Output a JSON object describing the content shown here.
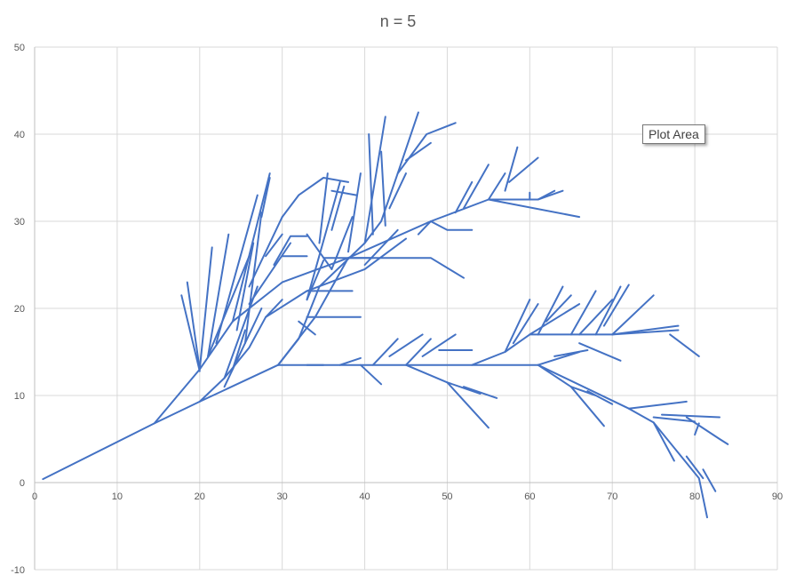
{
  "chart_data": {
    "type": "line",
    "title": "n = 5",
    "xlabel": "",
    "ylabel": "",
    "xlim": [
      0,
      90
    ],
    "ylim": [
      -10,
      50
    ],
    "x_ticks": [
      0,
      10,
      20,
      30,
      40,
      50,
      60,
      70,
      80,
      90
    ],
    "y_ticks": [
      -10,
      0,
      10,
      20,
      30,
      40,
      50
    ],
    "grid": true,
    "series_color": "#4472C4",
    "series": [
      {
        "points": [
          [
            1,
            0.4
          ],
          [
            14.5,
            6.8
          ],
          [
            20,
            9.3
          ],
          [
            29.5,
            13.5
          ],
          [
            61,
            13.5
          ],
          [
            72,
            8.5
          ],
          [
            75,
            6.9
          ],
          [
            80.5,
            0.5
          ],
          [
            81.5,
            -4.0
          ],
          null,
          [
            14.5,
            6.8
          ],
          [
            20,
            13.0
          ],
          [
            24,
            18.5
          ],
          [
            30,
            23.0
          ],
          [
            38,
            25.8
          ],
          [
            48,
            30.0
          ],
          [
            55,
            32.5
          ],
          [
            66,
            30.5
          ],
          null,
          [
            20,
            13.0
          ],
          [
            18.5,
            23.0
          ],
          null,
          [
            20,
            13.0
          ],
          [
            21.5,
            27.0
          ],
          null,
          [
            21,
            14.5
          ],
          [
            23.5,
            28.5
          ],
          null,
          [
            22,
            16.0
          ],
          [
            27,
            33.0
          ],
          null,
          [
            24,
            18.5
          ],
          [
            28.5,
            35.5
          ],
          null,
          [
            26,
            20.5
          ],
          [
            31,
            27.5
          ],
          null,
          [
            21,
            14.5
          ],
          [
            26,
            26.0
          ],
          null,
          [
            20,
            12.8
          ],
          [
            17.8,
            21.5
          ],
          null,
          [
            25.5,
            16.0
          ],
          [
            27.5,
            31.0
          ],
          null,
          [
            24.5,
            17.5
          ],
          [
            26.5,
            27.5
          ],
          null,
          [
            20,
            9.3
          ],
          [
            23,
            12.0
          ],
          [
            26,
            15.5
          ],
          [
            28,
            19.0
          ],
          [
            33,
            22.0
          ],
          [
            40,
            24.5
          ],
          [
            45,
            28.0
          ],
          null,
          [
            23,
            11.0
          ],
          [
            27.5,
            20.0
          ],
          null,
          [
            23,
            12.0
          ],
          [
            27,
            22.5
          ],
          null,
          [
            24,
            13.0
          ],
          [
            25.5,
            17.5
          ],
          null,
          [
            28,
            19.0
          ],
          [
            30,
            21.0
          ],
          null,
          [
            29.5,
            13.5
          ],
          [
            34,
            19.0
          ],
          [
            38,
            25.8
          ],
          [
            48,
            25.8
          ],
          [
            52,
            23.5
          ],
          null,
          [
            29.5,
            13.5
          ],
          [
            32,
            16.5
          ],
          [
            34.5,
            22.5
          ],
          [
            40,
            27.5
          ],
          [
            42,
            30.0
          ],
          [
            44,
            35.5
          ],
          [
            47.5,
            40.0
          ],
          [
            51,
            41.3
          ],
          null,
          [
            36,
            24.5
          ],
          [
            38.5,
            30.5
          ],
          null,
          [
            38,
            26.5
          ],
          [
            39.5,
            35.5
          ],
          null,
          [
            40,
            27.5
          ],
          [
            42.5,
            42.0
          ],
          null,
          [
            41,
            28.5
          ],
          [
            40.5,
            40.0
          ],
          null,
          [
            42.5,
            29.5
          ],
          [
            42,
            38.0
          ],
          null,
          [
            43,
            31.5
          ],
          [
            45,
            35.5
          ],
          null,
          [
            44,
            35.5
          ],
          [
            46.5,
            42.5
          ],
          null,
          [
            45,
            37.0
          ],
          [
            48,
            39.0
          ],
          null,
          [
            40,
            25.0
          ],
          [
            44,
            29.0
          ],
          null,
          [
            36,
            24.5
          ],
          [
            33,
            28.5
          ],
          null,
          [
            33,
            21.0
          ],
          [
            35,
            25.5
          ],
          null,
          [
            33,
            21.0
          ],
          [
            37,
            34.5
          ],
          null,
          [
            34.5,
            27.5
          ],
          [
            35.5,
            35.5
          ],
          null,
          [
            36,
            29.0
          ],
          [
            37.5,
            34.0
          ],
          null,
          [
            36,
            33.5
          ],
          [
            39,
            33.0
          ],
          null,
          [
            32,
            18.5
          ],
          [
            34,
            17.0
          ],
          null,
          [
            33,
            19.0
          ],
          [
            39.5,
            19.0
          ],
          null,
          [
            33,
            22.0
          ],
          [
            38.5,
            22.0
          ],
          null,
          [
            35,
            25.8
          ],
          [
            41,
            25.8
          ],
          null,
          [
            30,
            26.0
          ],
          [
            33,
            26.0
          ],
          null,
          [
            26,
            22.5
          ],
          [
            30,
            30.5
          ],
          null,
          [
            30,
            30.5
          ],
          [
            32,
            33.0
          ],
          [
            35,
            35.0
          ],
          [
            38,
            34.5
          ],
          null,
          [
            27.5,
            30.5
          ],
          [
            28.5,
            35.0
          ],
          null,
          [
            30,
            28.5
          ],
          [
            28,
            26.0
          ],
          null,
          [
            29,
            25.0
          ],
          [
            31,
            28.3
          ],
          [
            33,
            28.3
          ],
          null,
          [
            48,
            30.0
          ],
          [
            50,
            29.0
          ],
          [
            53,
            29.0
          ],
          null,
          [
            48,
            30.0
          ],
          [
            46.5,
            28.5
          ],
          null,
          [
            51,
            31.0
          ],
          [
            53,
            34.5
          ],
          null,
          [
            52,
            31.5
          ],
          [
            55,
            36.5
          ],
          null,
          [
            55,
            32.5
          ],
          [
            57,
            35.5
          ],
          null,
          [
            57,
            33.5
          ],
          [
            58.5,
            38.5
          ],
          null,
          [
            57.5,
            34.5
          ],
          [
            61,
            37.3
          ],
          null,
          [
            55,
            32.5
          ],
          [
            61,
            32.5
          ],
          [
            63,
            33.5
          ],
          null,
          [
            61,
            32.5
          ],
          [
            62.5,
            33.0
          ],
          [
            64,
            33.5
          ],
          null,
          [
            60,
            32.5
          ],
          [
            60,
            33.3
          ],
          null,
          [
            33,
            13.5
          ],
          [
            35,
            13.5
          ],
          null,
          [
            37,
            13.5
          ],
          [
            39.5,
            14.3
          ],
          null,
          [
            39.5,
            13.5
          ],
          [
            42,
            11.3
          ],
          null,
          [
            41,
            13.5
          ],
          [
            44,
            16.5
          ],
          null,
          [
            43,
            14.5
          ],
          [
            47,
            17.0
          ],
          null,
          [
            45,
            13.5
          ],
          [
            48,
            16.5
          ],
          null,
          [
            47,
            14.5
          ],
          [
            51,
            17.0
          ],
          null,
          [
            49,
            15.2
          ],
          [
            53,
            15.2
          ],
          null,
          [
            45,
            13.5
          ],
          [
            50,
            11.5
          ],
          [
            55,
            6.3
          ],
          null,
          [
            50,
            11.5
          ],
          [
            54,
            10.2
          ],
          null,
          [
            52,
            11.0
          ],
          [
            56,
            9.7
          ],
          null,
          [
            53,
            13.5
          ],
          [
            57,
            15.0
          ],
          [
            60,
            17.0
          ],
          [
            70,
            17.0
          ],
          [
            78,
            17.5
          ],
          null,
          [
            60,
            17.0
          ],
          [
            66,
            20.5
          ],
          null,
          [
            61,
            17.0
          ],
          [
            64,
            22.5
          ],
          null,
          [
            62,
            18.5
          ],
          [
            65,
            21.5
          ],
          null,
          [
            57,
            15.0
          ],
          [
            60,
            21.0
          ],
          null,
          [
            58,
            16.0
          ],
          [
            61,
            20.5
          ],
          null,
          [
            65,
            17.0
          ],
          [
            68,
            22.0
          ],
          null,
          [
            66,
            17.0
          ],
          [
            70,
            21.0
          ],
          null,
          [
            68,
            17.0
          ],
          [
            71,
            22.5
          ],
          null,
          [
            69,
            18.0
          ],
          [
            72,
            22.7
          ],
          null,
          [
            70,
            17.0
          ],
          [
            75,
            21.5
          ],
          null,
          [
            70,
            17.0
          ],
          [
            78,
            18.0
          ],
          null,
          [
            77,
            17.0
          ],
          [
            80.5,
            14.5
          ],
          null,
          [
            61,
            13.5
          ],
          [
            66,
            15.0
          ],
          null,
          [
            63,
            14.5
          ],
          [
            67,
            15.2
          ],
          null,
          [
            66,
            16.0
          ],
          [
            71,
            14.0
          ],
          null,
          [
            72,
            8.5
          ],
          [
            79,
            9.3
          ],
          null,
          [
            75,
            7.5
          ],
          [
            80,
            7.0
          ],
          null,
          [
            76,
            7.8
          ],
          [
            83,
            7.5
          ],
          null,
          [
            79,
            7.5
          ],
          [
            83,
            5.0
          ],
          [
            84,
            4.4
          ],
          null,
          [
            80.5,
            6.8
          ],
          [
            80,
            5.5
          ],
          null,
          [
            79,
            3.0
          ],
          [
            81,
            0.5
          ],
          null,
          [
            81,
            1.5
          ],
          [
            82.5,
            -1.0
          ],
          null,
          [
            75,
            6.9
          ],
          [
            77.5,
            2.5
          ],
          null,
          [
            61,
            13.5
          ],
          [
            65,
            11.0
          ],
          [
            68,
            10.0
          ],
          null,
          [
            65,
            11.0
          ],
          [
            69,
            6.5
          ],
          null,
          [
            67,
            10.5
          ],
          [
            70,
            9.0
          ]
        ]
      }
    ]
  },
  "tooltip": {
    "label": "Plot Area"
  }
}
